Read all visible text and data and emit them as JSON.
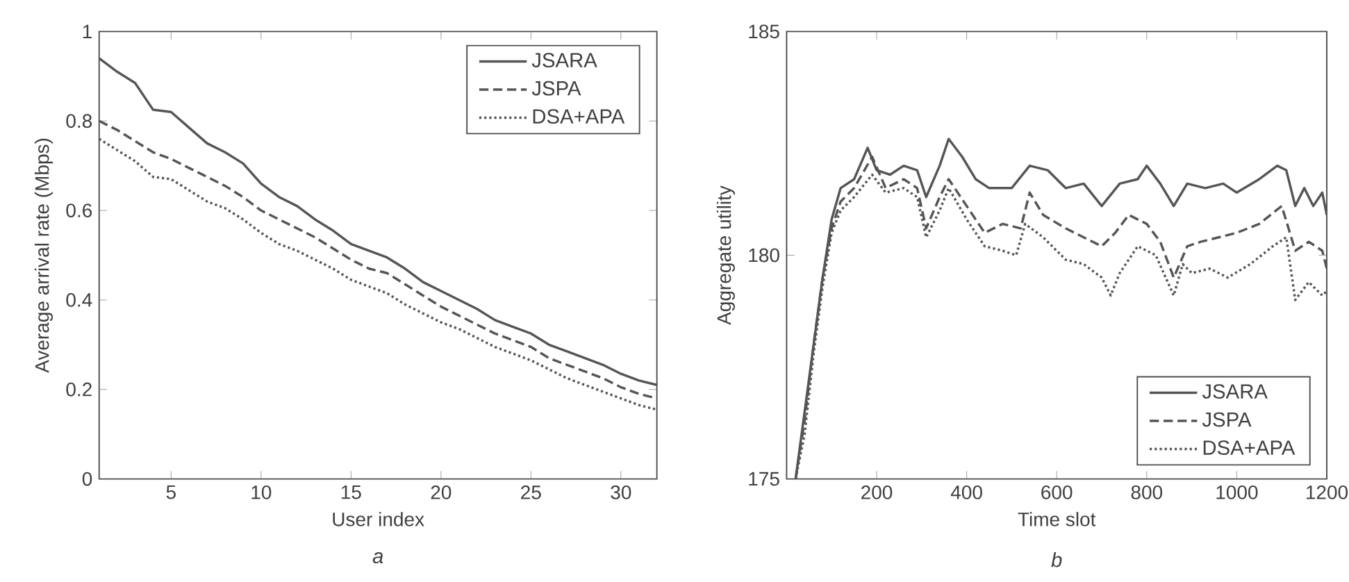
{
  "chart_data": [
    {
      "type": "line",
      "xlabel": "User index",
      "ylabel": "Average arrival rate (Mbps)",
      "annotations": [
        "a"
      ],
      "xlim": [
        1,
        32
      ],
      "xticks": [
        5,
        10,
        15,
        20,
        25,
        30
      ],
      "ylim": [
        0,
        1
      ],
      "yticks": [
        0,
        0.2,
        0.4,
        0.6,
        0.8,
        1
      ],
      "legend": "top right",
      "grid": false,
      "x": [
        1,
        2,
        3,
        4,
        5,
        6,
        7,
        8,
        9,
        10,
        11,
        12,
        13,
        14,
        15,
        16,
        17,
        18,
        19,
        20,
        21,
        22,
        23,
        24,
        25,
        26,
        27,
        28,
        29,
        30,
        31,
        32
      ],
      "series": [
        {
          "name": "JSARA",
          "color": "#555555",
          "line_style": "solid",
          "values": [
            0.94,
            0.91,
            0.885,
            0.825,
            0.82,
            0.785,
            0.75,
            0.73,
            0.705,
            0.66,
            0.63,
            0.61,
            0.58,
            0.555,
            0.525,
            0.51,
            0.495,
            0.47,
            0.44,
            0.42,
            0.4,
            0.38,
            0.355,
            0.34,
            0.325,
            0.3,
            0.285,
            0.27,
            0.255,
            0.235,
            0.22,
            0.21
          ]
        },
        {
          "name": "JSPA",
          "color": "#555555",
          "line_style": "dashed",
          "values": [
            0.8,
            0.78,
            0.755,
            0.73,
            0.715,
            0.695,
            0.675,
            0.655,
            0.63,
            0.6,
            0.58,
            0.56,
            0.54,
            0.515,
            0.49,
            0.47,
            0.46,
            0.435,
            0.41,
            0.385,
            0.365,
            0.345,
            0.325,
            0.31,
            0.295,
            0.27,
            0.255,
            0.24,
            0.225,
            0.205,
            0.19,
            0.18
          ]
        },
        {
          "name": "DSA+APA",
          "color": "#555555",
          "line_style": "dotted",
          "values": [
            0.76,
            0.735,
            0.71,
            0.675,
            0.67,
            0.645,
            0.62,
            0.605,
            0.58,
            0.55,
            0.525,
            0.51,
            0.49,
            0.47,
            0.445,
            0.43,
            0.415,
            0.39,
            0.37,
            0.35,
            0.335,
            0.315,
            0.295,
            0.28,
            0.265,
            0.245,
            0.225,
            0.21,
            0.195,
            0.18,
            0.165,
            0.155
          ]
        }
      ]
    },
    {
      "type": "line",
      "xlabel": "Time slot",
      "ylabel": "Aggregate utility",
      "annotations": [
        "b"
      ],
      "xlim": [
        0,
        1200
      ],
      "xticks": [
        200,
        400,
        600,
        800,
        1000,
        1200
      ],
      "ylim": [
        175,
        185
      ],
      "yticks": [
        175,
        180,
        185
      ],
      "legend": "bottom right",
      "grid": false,
      "series": [
        {
          "name": "JSARA",
          "color": "#555555",
          "line_style": "solid",
          "x": [
            20,
            40,
            60,
            80,
            100,
            120,
            150,
            180,
            200,
            230,
            260,
            290,
            310,
            340,
            360,
            390,
            420,
            450,
            500,
            540,
            580,
            620,
            660,
            700,
            740,
            780,
            800,
            830,
            860,
            890,
            930,
            970,
            1000,
            1050,
            1090,
            1110,
            1130,
            1150,
            1170,
            1190,
            1200
          ],
          "values": [
            175,
            176.5,
            178,
            179.5,
            180.8,
            181.5,
            181.7,
            182.4,
            181.9,
            181.8,
            182,
            181.9,
            181.3,
            182,
            182.6,
            182.2,
            181.7,
            181.5,
            181.5,
            182,
            181.9,
            181.5,
            181.6,
            181.1,
            181.6,
            181.7,
            182,
            181.6,
            181.1,
            181.6,
            181.5,
            181.6,
            181.4,
            181.7,
            182,
            181.9,
            181.1,
            181.5,
            181.1,
            181.4,
            180.9
          ]
        },
        {
          "name": "JSPA",
          "color": "#555555",
          "line_style": "dashed",
          "x": [
            20,
            40,
            60,
            80,
            100,
            120,
            150,
            190,
            220,
            260,
            290,
            310,
            340,
            360,
            400,
            440,
            480,
            520,
            540,
            570,
            620,
            660,
            700,
            730,
            760,
            800,
            830,
            860,
            890,
            920,
            960,
            1000,
            1050,
            1100,
            1130,
            1160,
            1190,
            1200
          ],
          "values": [
            175,
            176.3,
            178,
            179.5,
            180.6,
            181.2,
            181.5,
            182.2,
            181.5,
            181.7,
            181.5,
            180.6,
            181.3,
            181.7,
            181.1,
            180.5,
            180.7,
            180.6,
            181.4,
            180.9,
            180.6,
            180.4,
            180.2,
            180.5,
            180.9,
            180.7,
            180.3,
            179.5,
            180.2,
            180.3,
            180.4,
            180.5,
            180.7,
            181.1,
            180.1,
            180.3,
            180.1,
            179.7
          ]
        },
        {
          "name": "DSA+APA",
          "color": "#555555",
          "line_style": "dotted",
          "x": [
            20,
            40,
            60,
            80,
            100,
            120,
            150,
            190,
            220,
            260,
            290,
            310,
            340,
            360,
            400,
            440,
            480,
            510,
            530,
            570,
            620,
            660,
            700,
            720,
            740,
            780,
            820,
            860,
            880,
            900,
            940,
            980,
            1030,
            1080,
            1110,
            1130,
            1160,
            1190,
            1200
          ],
          "values": [
            175,
            176,
            177.8,
            179.3,
            180.5,
            181,
            181.3,
            181.8,
            181.4,
            181.5,
            181.3,
            180.4,
            181,
            181.5,
            180.8,
            180.2,
            180.1,
            180,
            180.7,
            180.4,
            179.9,
            179.8,
            179.5,
            179.1,
            179.6,
            180.2,
            180,
            179.1,
            179.8,
            179.6,
            179.7,
            179.5,
            179.8,
            180.2,
            180.4,
            179,
            179.4,
            179.1,
            179.2
          ]
        }
      ]
    }
  ]
}
